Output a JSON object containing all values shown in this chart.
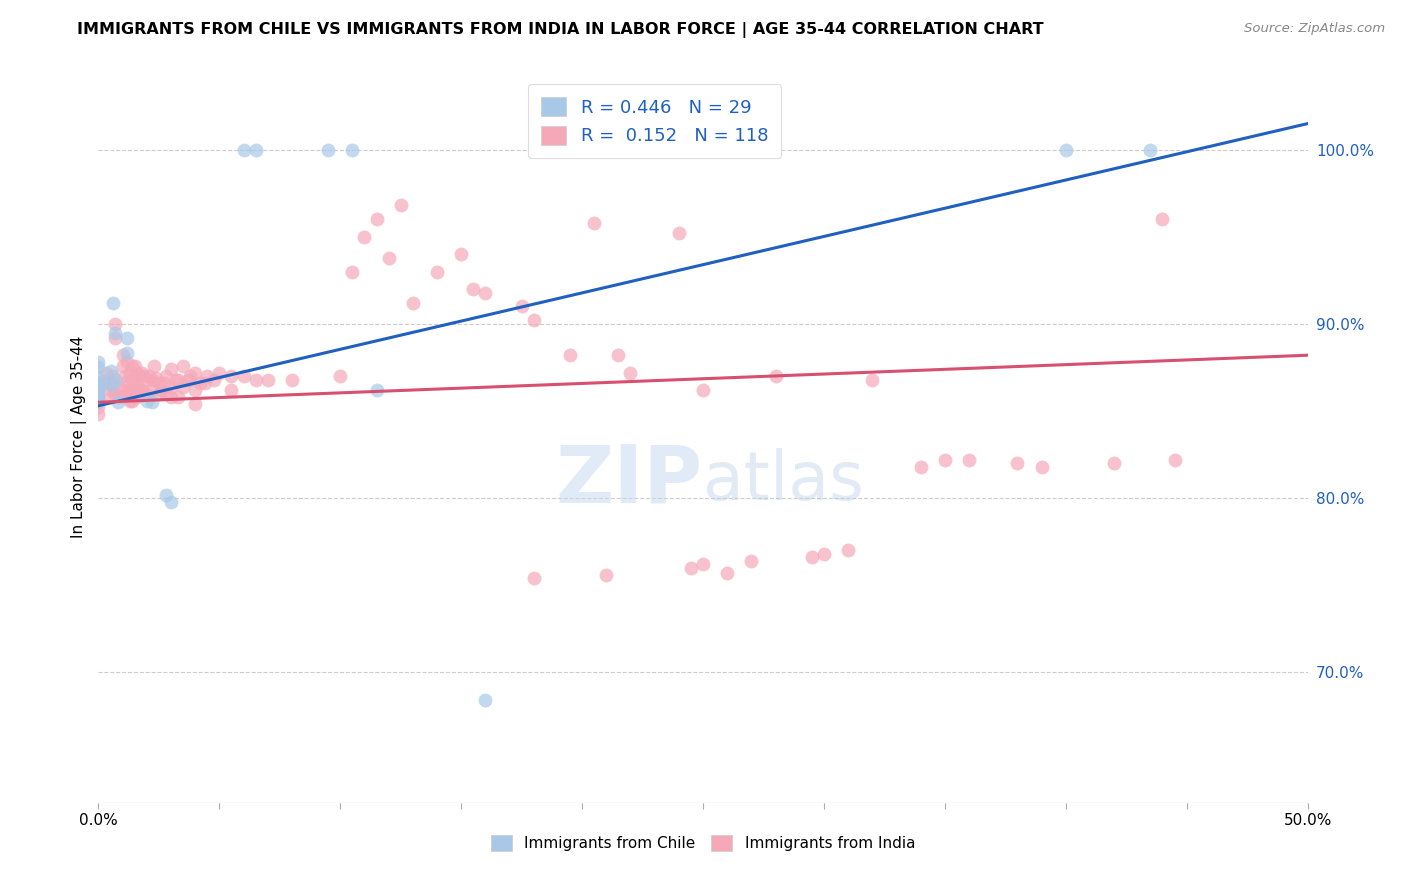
{
  "title": "IMMIGRANTS FROM CHILE VS IMMIGRANTS FROM INDIA IN LABOR FORCE | AGE 35-44 CORRELATION CHART",
  "source": "Source: ZipAtlas.com",
  "ylabel": "In Labor Force | Age 35-44",
  "x_min": 0.0,
  "x_max": 0.5,
  "y_min": 0.625,
  "y_max": 1.045,
  "chile_R": 0.446,
  "chile_N": 29,
  "india_R": 0.152,
  "india_N": 118,
  "chile_color": "#a8c8e8",
  "india_color": "#f5a8b8",
  "chile_line_color": "#2060c0",
  "india_line_color": "#d85070",
  "chile_line_x0": 0.0,
  "chile_line_y0": 0.853,
  "chile_line_x1": 0.5,
  "chile_line_y1": 1.015,
  "india_line_x0": 0.0,
  "india_line_y0": 0.855,
  "india_line_x1": 0.5,
  "india_line_y1": 0.882,
  "chile_points": [
    [
      0.0,
      0.855
    ],
    [
      0.0,
      0.857
    ],
    [
      0.0,
      0.859
    ],
    [
      0.0,
      0.862
    ],
    [
      0.0,
      0.865
    ],
    [
      0.0,
      0.87
    ],
    [
      0.0,
      0.875
    ],
    [
      0.0,
      0.878
    ],
    [
      0.002,
      0.867
    ],
    [
      0.005,
      0.873
    ],
    [
      0.005,
      0.865
    ],
    [
      0.006,
      0.912
    ],
    [
      0.007,
      0.895
    ],
    [
      0.007,
      0.868
    ],
    [
      0.008,
      0.855
    ],
    [
      0.012,
      0.892
    ],
    [
      0.012,
      0.883
    ],
    [
      0.02,
      0.856
    ],
    [
      0.022,
      0.855
    ],
    [
      0.028,
      0.802
    ],
    [
      0.03,
      0.798
    ],
    [
      0.06,
      1.0
    ],
    [
      0.065,
      1.0
    ],
    [
      0.095,
      1.0
    ],
    [
      0.105,
      1.0
    ],
    [
      0.115,
      0.862
    ],
    [
      0.16,
      0.684
    ],
    [
      0.4,
      1.0
    ],
    [
      0.435,
      1.0
    ]
  ],
  "india_points": [
    [
      0.0,
      0.856
    ],
    [
      0.0,
      0.858
    ],
    [
      0.0,
      0.86
    ],
    [
      0.0,
      0.862
    ],
    [
      0.0,
      0.866
    ],
    [
      0.0,
      0.852
    ],
    [
      0.0,
      0.848
    ],
    [
      0.003,
      0.872
    ],
    [
      0.004,
      0.866
    ],
    [
      0.005,
      0.862
    ],
    [
      0.005,
      0.858
    ],
    [
      0.006,
      0.87
    ],
    [
      0.006,
      0.866
    ],
    [
      0.007,
      0.9
    ],
    [
      0.007,
      0.892
    ],
    [
      0.007,
      0.86
    ],
    [
      0.008,
      0.864
    ],
    [
      0.008,
      0.858
    ],
    [
      0.01,
      0.882
    ],
    [
      0.01,
      0.876
    ],
    [
      0.01,
      0.862
    ],
    [
      0.01,
      0.858
    ],
    [
      0.011,
      0.87
    ],
    [
      0.012,
      0.878
    ],
    [
      0.012,
      0.867
    ],
    [
      0.012,
      0.86
    ],
    [
      0.013,
      0.872
    ],
    [
      0.013,
      0.862
    ],
    [
      0.013,
      0.856
    ],
    [
      0.014,
      0.876
    ],
    [
      0.014,
      0.868
    ],
    [
      0.014,
      0.862
    ],
    [
      0.014,
      0.856
    ],
    [
      0.015,
      0.876
    ],
    [
      0.015,
      0.866
    ],
    [
      0.015,
      0.86
    ],
    [
      0.016,
      0.872
    ],
    [
      0.016,
      0.864
    ],
    [
      0.016,
      0.858
    ],
    [
      0.017,
      0.87
    ],
    [
      0.017,
      0.862
    ],
    [
      0.018,
      0.872
    ],
    [
      0.018,
      0.862
    ],
    [
      0.019,
      0.87
    ],
    [
      0.02,
      0.868
    ],
    [
      0.02,
      0.86
    ],
    [
      0.021,
      0.87
    ],
    [
      0.022,
      0.868
    ],
    [
      0.022,
      0.862
    ],
    [
      0.023,
      0.876
    ],
    [
      0.024,
      0.869
    ],
    [
      0.025,
      0.866
    ],
    [
      0.025,
      0.86
    ],
    [
      0.026,
      0.862
    ],
    [
      0.027,
      0.866
    ],
    [
      0.028,
      0.87
    ],
    [
      0.028,
      0.86
    ],
    [
      0.03,
      0.874
    ],
    [
      0.03,
      0.864
    ],
    [
      0.03,
      0.858
    ],
    [
      0.032,
      0.868
    ],
    [
      0.033,
      0.868
    ],
    [
      0.033,
      0.858
    ],
    [
      0.035,
      0.876
    ],
    [
      0.035,
      0.864
    ],
    [
      0.037,
      0.868
    ],
    [
      0.038,
      0.87
    ],
    [
      0.04,
      0.872
    ],
    [
      0.04,
      0.862
    ],
    [
      0.04,
      0.854
    ],
    [
      0.042,
      0.866
    ],
    [
      0.044,
      0.866
    ],
    [
      0.045,
      0.87
    ],
    [
      0.048,
      0.868
    ],
    [
      0.05,
      0.872
    ],
    [
      0.055,
      0.87
    ],
    [
      0.055,
      0.862
    ],
    [
      0.06,
      0.87
    ],
    [
      0.065,
      0.868
    ],
    [
      0.07,
      0.868
    ],
    [
      0.08,
      0.868
    ],
    [
      0.1,
      0.87
    ],
    [
      0.105,
      0.93
    ],
    [
      0.11,
      0.95
    ],
    [
      0.115,
      0.96
    ],
    [
      0.12,
      0.938
    ],
    [
      0.125,
      0.968
    ],
    [
      0.13,
      0.912
    ],
    [
      0.14,
      0.93
    ],
    [
      0.15,
      0.94
    ],
    [
      0.155,
      0.92
    ],
    [
      0.16,
      0.918
    ],
    [
      0.175,
      0.91
    ],
    [
      0.18,
      0.902
    ],
    [
      0.195,
      0.882
    ],
    [
      0.205,
      0.958
    ],
    [
      0.215,
      0.882
    ],
    [
      0.22,
      0.872
    ],
    [
      0.24,
      0.952
    ],
    [
      0.25,
      0.862
    ],
    [
      0.28,
      0.87
    ],
    [
      0.32,
      0.868
    ],
    [
      0.35,
      0.822
    ],
    [
      0.36,
      0.822
    ],
    [
      0.38,
      0.82
    ],
    [
      0.39,
      0.818
    ],
    [
      0.42,
      0.82
    ],
    [
      0.445,
      0.822
    ],
    [
      0.295,
      0.766
    ],
    [
      0.3,
      0.768
    ],
    [
      0.245,
      0.76
    ],
    [
      0.25,
      0.762
    ],
    [
      0.21,
      0.756
    ],
    [
      0.27,
      0.764
    ],
    [
      0.31,
      0.77
    ],
    [
      0.26,
      0.757
    ],
    [
      0.34,
      0.818
    ],
    [
      0.18,
      0.754
    ],
    [
      0.44,
      0.96
    ]
  ]
}
